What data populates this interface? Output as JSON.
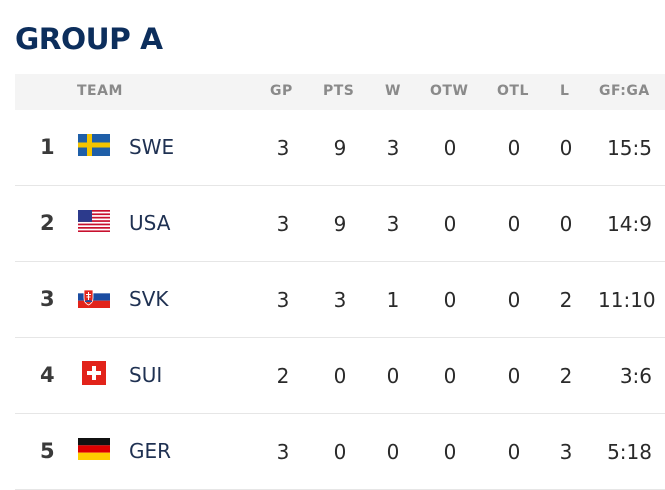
{
  "group_title": "GROUP A",
  "headers": {
    "team": "TEAM",
    "gp": "GP",
    "pts": "PTS",
    "w": "W",
    "otw": "OTW",
    "otl": "OTL",
    "l": "L",
    "gfga": "GF:GA"
  },
  "rows": [
    {
      "rank": "1",
      "flag": "sweden-flag-icon",
      "code": "SWE",
      "gp": "3",
      "pts": "9",
      "w": "3",
      "otw": "0",
      "otl": "0",
      "l": "0",
      "gfga": "15:5"
    },
    {
      "rank": "2",
      "flag": "usa-flag-icon",
      "code": "USA",
      "gp": "3",
      "pts": "9",
      "w": "3",
      "otw": "0",
      "otl": "0",
      "l": "0",
      "gfga": "14:9"
    },
    {
      "rank": "3",
      "flag": "slovakia-flag-icon",
      "code": "SVK",
      "gp": "3",
      "pts": "3",
      "w": "1",
      "otw": "0",
      "otl": "0",
      "l": "2",
      "gfga": "11:10"
    },
    {
      "rank": "4",
      "flag": "switzerland-flag-icon",
      "code": "SUI",
      "gp": "2",
      "pts": "0",
      "w": "0",
      "otw": "0",
      "otl": "0",
      "l": "2",
      "gfga": "3:6"
    },
    {
      "rank": "5",
      "flag": "germany-flag-icon",
      "code": "GER",
      "gp": "3",
      "pts": "0",
      "w": "0",
      "otw": "0",
      "otl": "0",
      "l": "3",
      "gfga": "5:18"
    }
  ],
  "colors": {
    "title": "#0c2e5c",
    "header_bg": "#f4f4f4",
    "header_text": "#8a8a8a",
    "team_code": "#1f3152"
  }
}
